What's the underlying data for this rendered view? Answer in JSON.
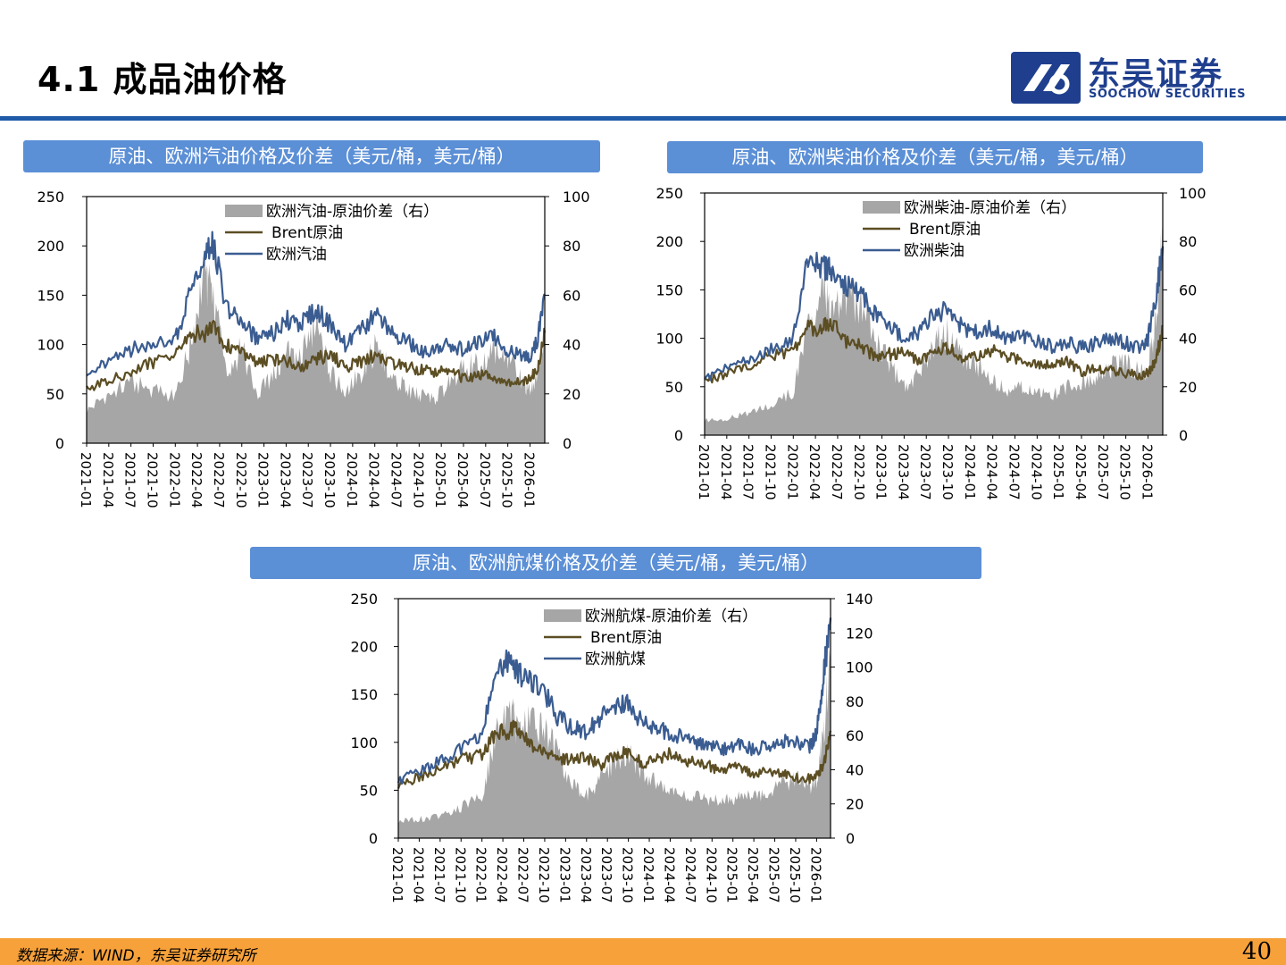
{
  "header": {
    "title": "4.1 成品油价格",
    "logo_cn": "东吴证券",
    "logo_en": "SOOCHOW SECURITIES"
  },
  "footer": {
    "source": "数据来源：WIND，东吴证券研究所",
    "page": "40"
  },
  "colors": {
    "accent": "#1f5aa8",
    "panel_title_bg": "#5b8fd6",
    "spread_fill": "#a6a6a6",
    "brent_line": "#5c4e23",
    "product_line": "#3a5c91",
    "footer_bg": "#f7a13a"
  },
  "chart_data": [
    {
      "type": "area",
      "title": "原油、欧洲汽油价格及价差（美元/桶，美元/桶）",
      "x_ticks": [
        "2021-01",
        "2021-04",
        "2021-07",
        "2021-10",
        "2022-01",
        "2022-04",
        "2022-07",
        "2022-10",
        "2023-01",
        "2023-04",
        "2023-07",
        "2023-10",
        "2024-01",
        "2024-04",
        "2024-07",
        "2024-10",
        "2025-01",
        "2025-04",
        "2025-07",
        "2025-10",
        "2026-01"
      ],
      "x_range": [
        "2021-01",
        "2026-03"
      ],
      "y_left": {
        "range": [
          0,
          250
        ],
        "ticks": [
          0,
          50,
          100,
          150,
          200,
          250
        ]
      },
      "y_right": {
        "range": [
          0,
          100
        ],
        "ticks": [
          0,
          20,
          40,
          60,
          80,
          100
        ]
      },
      "legend": {
        "position": "top-left",
        "entries": [
          "欧洲汽油-原油价差（右）",
          "Brent原油",
          "欧洲汽油"
        ]
      },
      "series": [
        {
          "name": "欧洲汽油-原油价差（右）",
          "axis": "right",
          "style": "area",
          "x": [
            "2021-01",
            "2021-04",
            "2021-07",
            "2021-10",
            "2022-01",
            "2022-03",
            "2022-05",
            "2022-06",
            "2022-08",
            "2022-10",
            "2022-12",
            "2023-02",
            "2023-04",
            "2023-06",
            "2023-08",
            "2023-10",
            "2023-12",
            "2024-02",
            "2024-04",
            "2024-06",
            "2024-08",
            "2024-10",
            "2024-12",
            "2025-02",
            "2025-04",
            "2025-06",
            "2025-08",
            "2025-10",
            "2025-12",
            "2026-01",
            "2026-02",
            "2026-03"
          ],
          "values": [
            13,
            20,
            24,
            22,
            19,
            40,
            70,
            58,
            30,
            38,
            20,
            26,
            36,
            35,
            48,
            28,
            21,
            28,
            38,
            30,
            22,
            20,
            18,
            24,
            30,
            32,
            38,
            34,
            26,
            20,
            30,
            45
          ]
        },
        {
          "name": "Brent原油",
          "axis": "left",
          "style": "line",
          "x": [
            "2021-01",
            "2021-04",
            "2021-07",
            "2021-10",
            "2022-01",
            "2022-03",
            "2022-05",
            "2022-06",
            "2022-08",
            "2022-10",
            "2022-12",
            "2023-02",
            "2023-04",
            "2023-06",
            "2023-08",
            "2023-10",
            "2023-12",
            "2024-02",
            "2024-04",
            "2024-06",
            "2024-08",
            "2024-10",
            "2024-12",
            "2025-02",
            "2025-04",
            "2025-06",
            "2025-08",
            "2025-10",
            "2025-12",
            "2026-01",
            "2026-02",
            "2026-03"
          ],
          "values": [
            55,
            64,
            73,
            82,
            87,
            112,
            110,
            118,
            98,
            93,
            82,
            84,
            84,
            75,
            85,
            90,
            77,
            82,
            89,
            82,
            78,
            74,
            73,
            76,
            65,
            70,
            67,
            63,
            62,
            65,
            75,
            112
          ]
        },
        {
          "name": "欧洲汽油",
          "axis": "left",
          "style": "line",
          "x": [
            "2021-01",
            "2021-04",
            "2021-07",
            "2021-10",
            "2022-01",
            "2022-03",
            "2022-05",
            "2022-06",
            "2022-08",
            "2022-10",
            "2022-12",
            "2023-02",
            "2023-04",
            "2023-06",
            "2023-08",
            "2023-10",
            "2023-12",
            "2024-02",
            "2024-04",
            "2024-06",
            "2024-08",
            "2024-10",
            "2024-12",
            "2025-02",
            "2025-04",
            "2025-06",
            "2025-08",
            "2025-10",
            "2025-12",
            "2026-01",
            "2026-02",
            "2026-03"
          ],
          "values": [
            65,
            85,
            95,
            100,
            105,
            150,
            190,
            205,
            135,
            125,
            105,
            110,
            125,
            120,
            135,
            120,
            100,
            112,
            130,
            115,
            105,
            95,
            92,
            100,
            95,
            102,
            108,
            95,
            88,
            85,
            105,
            150
          ]
        }
      ]
    },
    {
      "type": "area",
      "title": "原油、欧洲柴油价格及价差（美元/桶，美元/桶）",
      "x_ticks": [
        "2021-01",
        "2021-04",
        "2021-07",
        "2021-10",
        "2022-01",
        "2022-04",
        "2022-07",
        "2022-10",
        "2023-01",
        "2023-04",
        "2023-07",
        "2023-10",
        "2024-01",
        "2024-04",
        "2024-07",
        "2024-10",
        "2025-01",
        "2025-04",
        "2025-07",
        "2025-10",
        "2026-01"
      ],
      "x_range": [
        "2021-01",
        "2026-03"
      ],
      "y_left": {
        "range": [
          0,
          250
        ],
        "ticks": [
          0,
          50,
          100,
          150,
          200,
          250
        ]
      },
      "y_right": {
        "range": [
          0,
          100
        ],
        "ticks": [
          0,
          20,
          40,
          60,
          80,
          100
        ]
      },
      "legend": {
        "position": "top-right",
        "entries": [
          "欧洲柴油-原油价差（右）",
          "Brent原油",
          "欧洲柴油"
        ]
      },
      "series": [
        {
          "name": "欧洲柴油-原油价差（右）",
          "axis": "right",
          "style": "area",
          "x": [
            "2021-01",
            "2021-04",
            "2021-07",
            "2021-10",
            "2022-01",
            "2022-03",
            "2022-05",
            "2022-06",
            "2022-08",
            "2022-10",
            "2022-12",
            "2023-02",
            "2023-04",
            "2023-06",
            "2023-08",
            "2023-10",
            "2023-12",
            "2024-02",
            "2024-04",
            "2024-06",
            "2024-08",
            "2024-10",
            "2024-12",
            "2025-02",
            "2025-04",
            "2025-06",
            "2025-08",
            "2025-10",
            "2025-12",
            "2026-01",
            "2026-02",
            "2026-03"
          ],
          "values": [
            6,
            7,
            9,
            12,
            18,
            45,
            65,
            50,
            58,
            55,
            40,
            30,
            20,
            25,
            38,
            42,
            30,
            28,
            22,
            18,
            20,
            18,
            17,
            20,
            22,
            24,
            28,
            30,
            25,
            28,
            45,
            80
          ]
        },
        {
          "name": "Brent原油",
          "axis": "left",
          "style": "line",
          "x": [
            "2021-01",
            "2021-04",
            "2021-07",
            "2021-10",
            "2022-01",
            "2022-03",
            "2022-05",
            "2022-06",
            "2022-08",
            "2022-10",
            "2022-12",
            "2023-02",
            "2023-04",
            "2023-06",
            "2023-08",
            "2023-10",
            "2023-12",
            "2024-02",
            "2024-04",
            "2024-06",
            "2024-08",
            "2024-10",
            "2024-12",
            "2025-02",
            "2025-04",
            "2025-06",
            "2025-08",
            "2025-10",
            "2025-12",
            "2026-01",
            "2026-02",
            "2026-03"
          ],
          "values": [
            55,
            64,
            73,
            82,
            87,
            112,
            110,
            118,
            98,
            93,
            82,
            84,
            84,
            75,
            85,
            90,
            77,
            82,
            89,
            82,
            78,
            74,
            73,
            76,
            65,
            70,
            67,
            63,
            62,
            65,
            75,
            112
          ]
        },
        {
          "name": "欧洲柴油",
          "axis": "left",
          "style": "line",
          "x": [
            "2021-01",
            "2021-04",
            "2021-07",
            "2021-10",
            "2022-01",
            "2022-03",
            "2022-05",
            "2022-06",
            "2022-08",
            "2022-10",
            "2022-12",
            "2023-02",
            "2023-04",
            "2023-06",
            "2023-08",
            "2023-10",
            "2023-12",
            "2024-02",
            "2024-04",
            "2024-06",
            "2024-08",
            "2024-10",
            "2024-12",
            "2025-02",
            "2025-04",
            "2025-06",
            "2025-08",
            "2025-10",
            "2025-12",
            "2026-01",
            "2026-02",
            "2026-03"
          ],
          "values": [
            58,
            70,
            80,
            88,
            100,
            180,
            175,
            170,
            155,
            145,
            125,
            112,
            100,
            105,
            125,
            130,
            110,
            108,
            110,
            100,
            102,
            96,
            92,
            96,
            90,
            95,
            100,
            95,
            90,
            100,
            140,
            195
          ]
        }
      ]
    },
    {
      "type": "area",
      "title": "原油、欧洲航煤价格及价差（美元/桶，美元/桶）",
      "x_ticks": [
        "2021-01",
        "2021-04",
        "2021-07",
        "2021-10",
        "2022-01",
        "2022-04",
        "2022-07",
        "2022-10",
        "2023-01",
        "2023-04",
        "2023-07",
        "2023-10",
        "2024-01",
        "2024-04",
        "2024-07",
        "2024-10",
        "2025-01",
        "2025-04",
        "2025-07",
        "2025-10",
        "2026-01"
      ],
      "x_range": [
        "2021-01",
        "2026-03"
      ],
      "y_left": {
        "range": [
          0,
          250
        ],
        "ticks": [
          0,
          50,
          100,
          150,
          200,
          250
        ]
      },
      "y_right": {
        "range": [
          0,
          140
        ],
        "ticks": [
          0,
          20,
          40,
          60,
          80,
          100,
          120,
          140
        ]
      },
      "legend": {
        "position": "top-right",
        "entries": [
          "欧洲航煤-原油价差（右）",
          "Brent原油",
          "欧洲航煤"
        ]
      },
      "series": [
        {
          "name": "欧洲航煤-原油价差（右）",
          "axis": "right",
          "style": "area",
          "x": [
            "2021-01",
            "2021-04",
            "2021-07",
            "2021-10",
            "2022-01",
            "2022-03",
            "2022-05",
            "2022-06",
            "2022-08",
            "2022-10",
            "2022-12",
            "2023-02",
            "2023-04",
            "2023-06",
            "2023-08",
            "2023-10",
            "2023-12",
            "2024-02",
            "2024-04",
            "2024-06",
            "2024-08",
            "2024-10",
            "2024-12",
            "2025-02",
            "2025-04",
            "2025-06",
            "2025-08",
            "2025-10",
            "2025-12",
            "2026-01",
            "2026-02",
            "2026-03"
          ],
          "values": [
            10,
            11,
            13,
            18,
            25,
            60,
            75,
            65,
            70,
            62,
            48,
            32,
            25,
            35,
            45,
            50,
            38,
            32,
            28,
            25,
            24,
            22,
            22,
            24,
            25,
            27,
            32,
            35,
            30,
            35,
            60,
            115
          ]
        },
        {
          "name": "Brent原油",
          "axis": "left",
          "style": "line",
          "x": [
            "2021-01",
            "2021-04",
            "2021-07",
            "2021-10",
            "2022-01",
            "2022-03",
            "2022-05",
            "2022-06",
            "2022-08",
            "2022-10",
            "2022-12",
            "2023-02",
            "2023-04",
            "2023-06",
            "2023-08",
            "2023-10",
            "2023-12",
            "2024-02",
            "2024-04",
            "2024-06",
            "2024-08",
            "2024-10",
            "2024-12",
            "2025-02",
            "2025-04",
            "2025-06",
            "2025-08",
            "2025-10",
            "2025-12",
            "2026-01",
            "2026-02",
            "2026-03"
          ],
          "values": [
            55,
            64,
            73,
            82,
            87,
            112,
            110,
            118,
            98,
            93,
            82,
            84,
            84,
            75,
            85,
            90,
            77,
            82,
            89,
            82,
            78,
            74,
            73,
            76,
            65,
            70,
            67,
            63,
            62,
            65,
            75,
            112
          ]
        },
        {
          "name": "欧洲航煤",
          "axis": "left",
          "style": "line",
          "x": [
            "2021-01",
            "2021-04",
            "2021-07",
            "2021-10",
            "2022-01",
            "2022-03",
            "2022-05",
            "2022-06",
            "2022-08",
            "2022-10",
            "2022-12",
            "2023-02",
            "2023-04",
            "2023-06",
            "2023-08",
            "2023-10",
            "2023-12",
            "2024-02",
            "2024-04",
            "2024-06",
            "2024-08",
            "2024-10",
            "2024-12",
            "2025-02",
            "2025-04",
            "2025-06",
            "2025-08",
            "2025-10",
            "2025-12",
            "2026-01",
            "2026-02",
            "2026-03"
          ],
          "values": [
            60,
            70,
            80,
            92,
            108,
            180,
            185,
            175,
            165,
            150,
            125,
            115,
            110,
            125,
            140,
            140,
            120,
            115,
            108,
            105,
            100,
            95,
            93,
            97,
            92,
            95,
            100,
            100,
            95,
            110,
            170,
            230
          ]
        }
      ]
    }
  ]
}
